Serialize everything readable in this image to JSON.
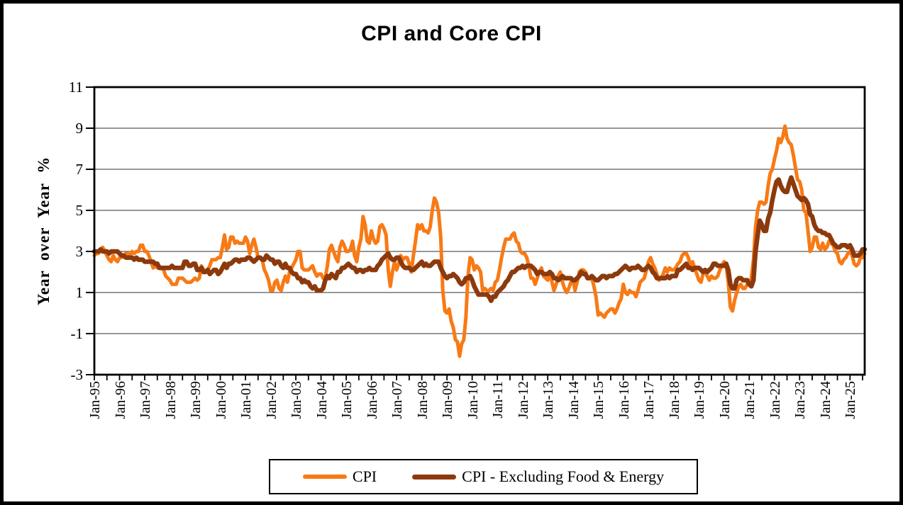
{
  "title": "CPI and Core CPI",
  "y_axis": {
    "label": "Year over Year %",
    "ticks": [
      11,
      9,
      7,
      5,
      3,
      1,
      -1,
      -3
    ],
    "min": -3,
    "max": 11
  },
  "x_axis": {
    "year_labels": [
      "Jan-95",
      "Jan-96",
      "Jan-97",
      "Jan-98",
      "Jan-99",
      "Jan-00",
      "Jan-01",
      "Jan-02",
      "Jan-03",
      "Jan-04",
      "Jan-05",
      "Jan-06",
      "Jan-07",
      "Jan-08",
      "Jan-09",
      "Jan-10",
      "Jan-11",
      "Jan-12",
      "Jan-13",
      "Jan-14",
      "Jan-15",
      "Jan-16",
      "Jan-17",
      "Jan-18",
      "Jan-19",
      "Jan-20",
      "Jan-21",
      "Jan-22",
      "Jan-23",
      "Jan-24",
      "Jan-25"
    ],
    "minor_tick_interval_months": 6
  },
  "legend": {
    "items": [
      {
        "label": "CPI",
        "color": "#F87A15"
      },
      {
        "label": "CPI - Excluding Food & Energy",
        "color": "#8C3A0D"
      }
    ]
  },
  "chart_data": {
    "type": "line",
    "title": "CPI and Core CPI",
    "xlabel": "",
    "ylabel": "Year over Year %",
    "ylim": [
      -3,
      11
    ],
    "y_ticks": [
      11,
      9,
      7,
      5,
      3,
      1,
      -1,
      -3
    ],
    "x_start": "Jan-1995",
    "x_end": "Aug-2025",
    "frequency": "monthly",
    "grid": "horizontal",
    "legend_position": "bottom",
    "series": [
      {
        "name": "CPI",
        "color": "#F87A15",
        "values": [
          2.8,
          2.9,
          2.9,
          3.1,
          3.2,
          3.0,
          2.8,
          2.6,
          2.5,
          2.8,
          2.6,
          2.5,
          2.7,
          2.7,
          2.8,
          2.9,
          2.9,
          2.8,
          3.0,
          2.9,
          3.0,
          3.0,
          3.3,
          3.3,
          3.0,
          3.0,
          2.8,
          2.5,
          2.2,
          2.3,
          2.2,
          2.2,
          2.2,
          2.1,
          1.8,
          1.7,
          1.6,
          1.4,
          1.4,
          1.4,
          1.7,
          1.7,
          1.7,
          1.6,
          1.5,
          1.5,
          1.5,
          1.6,
          1.7,
          1.6,
          1.7,
          2.3,
          2.1,
          2.0,
          2.1,
          2.3,
          2.6,
          2.6,
          2.6,
          2.7,
          2.7,
          3.2,
          3.8,
          3.1,
          3.2,
          3.7,
          3.7,
          3.4,
          3.5,
          3.4,
          3.4,
          3.4,
          3.7,
          3.5,
          2.9,
          3.3,
          3.6,
          3.2,
          2.7,
          2.7,
          2.6,
          2.1,
          1.9,
          1.6,
          1.1,
          1.1,
          1.5,
          1.6,
          1.2,
          1.1,
          1.5,
          1.8,
          1.5,
          2.0,
          2.2,
          2.4,
          2.6,
          3.0,
          3.0,
          2.2,
          2.1,
          2.1,
          2.1,
          2.2,
          2.3,
          2.0,
          1.8,
          1.9,
          1.9,
          1.7,
          1.7,
          2.3,
          3.1,
          3.3,
          3.0,
          2.7,
          2.5,
          3.2,
          3.5,
          3.3,
          3.0,
          3.0,
          3.1,
          3.5,
          2.8,
          2.5,
          3.2,
          3.6,
          4.7,
          4.3,
          3.5,
          3.4,
          4.0,
          3.6,
          3.4,
          3.5,
          4.2,
          4.3,
          4.1,
          3.8,
          2.1,
          1.3,
          2.0,
          2.5,
          2.1,
          2.4,
          2.8,
          2.6,
          2.7,
          2.7,
          2.4,
          2.0,
          2.8,
          3.5,
          4.3,
          4.1,
          4.3,
          4.0,
          4.0,
          3.9,
          4.2,
          5.0,
          5.6,
          5.4,
          4.9,
          3.7,
          1.1,
          0.1,
          0.0,
          0.2,
          -0.4,
          -0.7,
          -1.3,
          -1.4,
          -2.1,
          -1.5,
          -1.3,
          -0.2,
          1.8,
          2.7,
          2.6,
          2.1,
          2.3,
          2.2,
          2.0,
          1.1,
          1.2,
          1.1,
          1.1,
          1.2,
          1.1,
          1.5,
          1.6,
          2.1,
          2.7,
          3.2,
          3.6,
          3.6,
          3.6,
          3.8,
          3.9,
          3.5,
          3.4,
          3.0,
          2.9,
          2.9,
          2.7,
          2.3,
          1.7,
          1.7,
          1.4,
          1.7,
          2.0,
          2.2,
          1.8,
          1.7,
          1.6,
          2.0,
          1.5,
          1.1,
          1.4,
          1.8,
          2.0,
          1.5,
          1.2,
          1.0,
          1.2,
          1.5,
          1.6,
          1.1,
          1.5,
          2.0,
          2.1,
          2.1,
          2.0,
          1.7,
          1.7,
          1.7,
          1.3,
          0.8,
          -0.1,
          0.0,
          -0.1,
          -0.2,
          0.0,
          0.1,
          0.2,
          0.2,
          0.0,
          0.2,
          0.5,
          0.7,
          1.4,
          1.0,
          0.9,
          1.1,
          1.0,
          1.0,
          0.8,
          1.1,
          1.5,
          1.6,
          1.7,
          2.1,
          2.5,
          2.7,
          2.4,
          2.2,
          1.9,
          1.6,
          1.7,
          1.9,
          2.2,
          2.0,
          2.2,
          2.1,
          2.1,
          2.2,
          2.4,
          2.5,
          2.8,
          2.9,
          2.9,
          2.7,
          2.3,
          2.5,
          2.2,
          1.9,
          1.6,
          1.5,
          1.9,
          2.0,
          1.8,
          1.6,
          1.8,
          1.7,
          1.7,
          1.8,
          2.1,
          2.3,
          2.5,
          2.3,
          1.5,
          0.3,
          0.1,
          0.6,
          1.0,
          1.3,
          1.4,
          1.2,
          1.2,
          1.4,
          1.4,
          1.7,
          2.6,
          4.2,
          5.0,
          5.4,
          5.4,
          5.3,
          5.4,
          6.2,
          6.8,
          7.0,
          7.5,
          7.9,
          8.5,
          8.3,
          8.6,
          9.1,
          8.5,
          8.3,
          8.2,
          7.7,
          7.1,
          6.5,
          6.4,
          6.0,
          5.0,
          4.9,
          4.0,
          3.0,
          3.2,
          3.7,
          3.7,
          3.2,
          3.1,
          3.4,
          3.1,
          3.2,
          3.5,
          3.4,
          3.3,
          3.0,
          2.9,
          2.5,
          2.4,
          2.6,
          2.7,
          2.9,
          3.0,
          2.8,
          2.4,
          2.3,
          2.4,
          2.7,
          2.7,
          2.9
        ]
      },
      {
        "name": "CPI - Excluding Food & Energy",
        "color": "#8C3A0D",
        "values": [
          3.0,
          3.0,
          3.0,
          3.1,
          3.0,
          3.0,
          3.0,
          2.9,
          3.0,
          3.0,
          3.0,
          3.0,
          2.9,
          2.8,
          2.8,
          2.7,
          2.7,
          2.7,
          2.7,
          2.6,
          2.7,
          2.6,
          2.6,
          2.6,
          2.5,
          2.5,
          2.5,
          2.5,
          2.5,
          2.4,
          2.4,
          2.2,
          2.2,
          2.2,
          2.2,
          2.2,
          2.2,
          2.3,
          2.2,
          2.2,
          2.2,
          2.2,
          2.2,
          2.5,
          2.5,
          2.3,
          2.3,
          2.4,
          2.4,
          2.1,
          2.1,
          2.2,
          2.0,
          2.0,
          2.1,
          1.9,
          2.0,
          2.1,
          2.1,
          1.9,
          2.0,
          2.2,
          2.4,
          2.2,
          2.4,
          2.4,
          2.5,
          2.6,
          2.6,
          2.5,
          2.6,
          2.6,
          2.6,
          2.7,
          2.7,
          2.6,
          2.5,
          2.6,
          2.7,
          2.7,
          2.6,
          2.6,
          2.8,
          2.7,
          2.6,
          2.6,
          2.4,
          2.5,
          2.5,
          2.3,
          2.2,
          2.4,
          2.2,
          2.2,
          2.0,
          1.9,
          1.9,
          1.7,
          1.7,
          1.5,
          1.6,
          1.5,
          1.5,
          1.3,
          1.2,
          1.3,
          1.1,
          1.1,
          1.1,
          1.2,
          1.6,
          1.8,
          1.7,
          1.9,
          1.8,
          1.7,
          2.0,
          2.0,
          2.2,
          2.2,
          2.3,
          2.4,
          2.3,
          2.2,
          2.2,
          2.0,
          2.1,
          2.1,
          2.0,
          2.1,
          2.1,
          2.2,
          2.1,
          2.1,
          2.1,
          2.3,
          2.4,
          2.6,
          2.7,
          2.8,
          2.9,
          2.7,
          2.6,
          2.6,
          2.7,
          2.7,
          2.5,
          2.3,
          2.2,
          2.2,
          2.2,
          2.1,
          2.1,
          2.2,
          2.3,
          2.4,
          2.5,
          2.3,
          2.4,
          2.3,
          2.3,
          2.4,
          2.5,
          2.5,
          2.5,
          2.2,
          2.0,
          1.8,
          1.7,
          1.8,
          1.8,
          1.9,
          1.8,
          1.7,
          1.5,
          1.4,
          1.5,
          1.7,
          1.7,
          1.8,
          1.6,
          1.3,
          1.1,
          0.9,
          0.9,
          0.9,
          0.9,
          0.9,
          0.8,
          0.6,
          0.8,
          0.8,
          1.0,
          1.1,
          1.2,
          1.3,
          1.5,
          1.6,
          1.8,
          2.0,
          2.0,
          2.1,
          2.2,
          2.2,
          2.3,
          2.2,
          2.3,
          2.3,
          2.3,
          2.2,
          2.1,
          1.9,
          2.0,
          2.0,
          1.9,
          1.9,
          1.9,
          2.0,
          1.9,
          1.7,
          1.7,
          1.6,
          1.7,
          1.8,
          1.7,
          1.7,
          1.7,
          1.7,
          1.6,
          1.6,
          1.7,
          1.8,
          2.0,
          1.9,
          1.9,
          1.7,
          1.7,
          1.8,
          1.7,
          1.6,
          1.6,
          1.7,
          1.8,
          1.8,
          1.7,
          1.8,
          1.8,
          1.8,
          1.9,
          1.9,
          2.0,
          2.1,
          2.2,
          2.3,
          2.2,
          2.1,
          2.2,
          2.2,
          2.2,
          2.3,
          2.2,
          2.1,
          2.1,
          2.2,
          2.3,
          2.2,
          2.0,
          1.9,
          1.7,
          1.7,
          1.7,
          1.7,
          1.7,
          1.8,
          1.7,
          1.8,
          1.8,
          1.8,
          2.1,
          2.1,
          2.2,
          2.3,
          2.4,
          2.2,
          2.2,
          2.1,
          2.2,
          2.2,
          2.2,
          2.1,
          2.0,
          2.1,
          2.0,
          2.1,
          2.2,
          2.4,
          2.4,
          2.3,
          2.3,
          2.3,
          2.3,
          2.4,
          2.1,
          1.4,
          1.2,
          1.2,
          1.6,
          1.7,
          1.7,
          1.6,
          1.6,
          1.6,
          1.4,
          1.3,
          1.6,
          3.0,
          3.8,
          4.5,
          4.3,
          4.0,
          4.0,
          4.6,
          4.9,
          5.5,
          6.0,
          6.4,
          6.5,
          6.2,
          6.0,
          5.9,
          5.9,
          6.3,
          6.6,
          6.3,
          6.0,
          5.7,
          5.6,
          5.5,
          5.6,
          5.5,
          5.3,
          4.8,
          4.7,
          4.3,
          4.1,
          4.0,
          4.0,
          3.9,
          3.9,
          3.8,
          3.8,
          3.6,
          3.4,
          3.3,
          3.2,
          3.2,
          3.3,
          3.3,
          3.3,
          3.2,
          3.3,
          3.1,
          2.8,
          2.8,
          2.8,
          2.9,
          3.1,
          3.1
        ]
      }
    ]
  }
}
